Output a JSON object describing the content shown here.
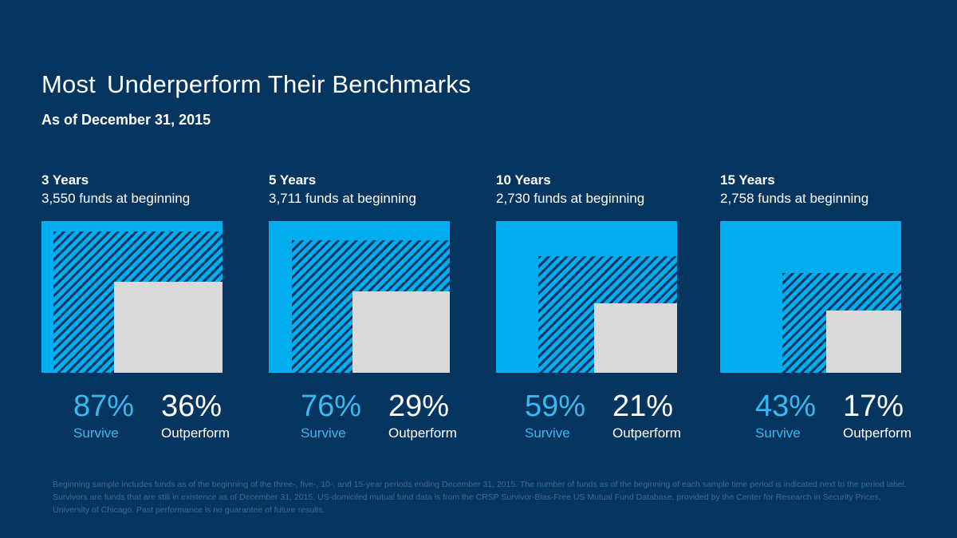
{
  "title_part1": "Most",
  "title_part2": "Underperform Their Benchmarks",
  "subtitle": "As of December 31, 2015",
  "colors": {
    "background": "#06365f",
    "total": "#00aeef",
    "survive_hatch": "#06365f",
    "outperform": "#d9d9d9",
    "survive_text": "#3bb8ef"
  },
  "chart_data": {
    "type": "area",
    "panels": [
      {
        "period": "3 Years",
        "funds_label": "3,550 funds at beginning",
        "funds": 3550,
        "survive": 87,
        "outperform": 36,
        "survive_label": "87%",
        "outperform_label": "36%"
      },
      {
        "period": "5 Years",
        "funds_label": "3,711 funds at beginning",
        "funds": 3711,
        "survive": 76,
        "outperform": 29,
        "survive_label": "76%",
        "outperform_label": "29%"
      },
      {
        "period": "10 Years",
        "funds_label": "2,730 funds at beginning",
        "funds": 2730,
        "survive": 59,
        "outperform": 21,
        "survive_label": "59%",
        "outperform_label": "21%"
      },
      {
        "period": "15 Years",
        "funds_label": "2,758 funds at beginning",
        "funds": 2758,
        "survive": 43,
        "outperform": 17,
        "survive_label": "43%",
        "outperform_label": "17%"
      }
    ],
    "survive_caption": "Survive",
    "outperform_caption": "Outperform"
  },
  "footnote": "Beginning sample includes funds as of the beginning of the three-, five-, 10-, and 15-year periods ending December 31, 2015. The number of funds as of the beginning of each sample time period is indicated next to the period label. Survivors are funds that are still in existence as of December 31, 2015. US-domiciled mutual fund data is from the CRSP Survivor-Bias-Free US Mutual Fund Database, provided by the Center for Research in Security Prices, University of Chicago. Past performance is no guarantee of future results."
}
